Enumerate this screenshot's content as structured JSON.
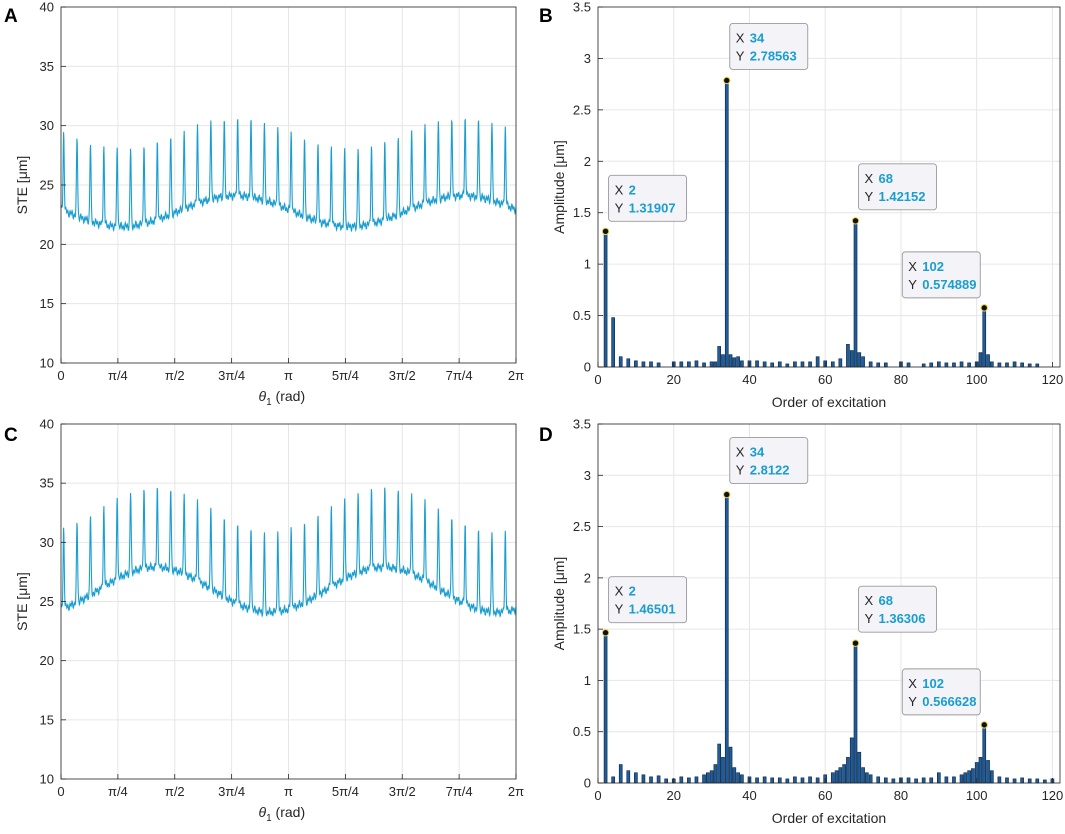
{
  "colors": {
    "line": "#1a9ed1",
    "bar_fill": "#1f5c99",
    "bar_edge": "#0b2540",
    "grid": "#e6e6e6",
    "axis": "#262626",
    "datatip_value": "#1a9ed1"
  },
  "chart_data": [
    {
      "panel": "A",
      "type": "line",
      "xlabel_symbol": "θ",
      "xlabel_sub": "1",
      "xlabel_rest": " (rad)",
      "ylabel": "STE [μm]",
      "xlim": [
        0,
        6.2832
      ],
      "ylim": [
        10,
        40
      ],
      "yticks": [
        10,
        15,
        20,
        25,
        30,
        35,
        40
      ],
      "xticks": [
        0,
        0.7854,
        1.5708,
        2.3562,
        3.1416,
        3.927,
        4.7124,
        5.4978,
        6.2832
      ],
      "xtick_labels": [
        "0",
        "π/4",
        "π/2",
        "3π/4",
        "π",
        "5π/4",
        "3π/2",
        "7π/4",
        "2π"
      ],
      "series": [
        {
          "name": "STE",
          "mean": 26,
          "mod_amp": 1.3,
          "mod_phase": 0.35,
          "teeth": 34,
          "base_offset": -3.2,
          "peak_offset": 3.4
        }
      ]
    },
    {
      "panel": "B",
      "type": "bar",
      "xlabel": "Order of excitation",
      "ylabel": "Amplitude [μm]",
      "xlim": [
        0,
        122
      ],
      "ylim": [
        0,
        3.5
      ],
      "yticks": [
        0,
        0.5,
        1,
        1.5,
        2,
        2.5,
        3,
        3.5
      ],
      "ytick_labels": [
        "0",
        "0.5",
        "1",
        "1.5",
        "2",
        "2.5",
        "3",
        "3.5"
      ],
      "xticks": [
        0,
        20,
        40,
        60,
        80,
        100,
        120
      ],
      "x": [
        2,
        4,
        6,
        8,
        10,
        12,
        14,
        16,
        20,
        22,
        24,
        26,
        28,
        30,
        31,
        32,
        33,
        34,
        35,
        36,
        37,
        38,
        40,
        42,
        44,
        46,
        48,
        50,
        52,
        54,
        56,
        58,
        60,
        62,
        64,
        66,
        67,
        68,
        69,
        70,
        72,
        74,
        76,
        80,
        82,
        86,
        88,
        90,
        92,
        94,
        96,
        98,
        100,
        101,
        102,
        103,
        104,
        106,
        108,
        110,
        112,
        114,
        116
      ],
      "values": [
        1.31907,
        0.48,
        0.1,
        0.08,
        0.06,
        0.05,
        0.05,
        0.04,
        0.05,
        0.05,
        0.05,
        0.06,
        0.04,
        0.05,
        0.05,
        0.2,
        0.12,
        2.78563,
        0.12,
        0.09,
        0.1,
        0.06,
        0.06,
        0.06,
        0.05,
        0.04,
        0.05,
        0.03,
        0.05,
        0.05,
        0.05,
        0.1,
        0.06,
        0.05,
        0.08,
        0.22,
        0.16,
        1.42152,
        0.14,
        0.1,
        0.05,
        0.04,
        0.04,
        0.05,
        0.04,
        0.03,
        0.04,
        0.05,
        0.04,
        0.04,
        0.05,
        0.04,
        0.05,
        0.14,
        0.574889,
        0.12,
        0.05,
        0.04,
        0.04,
        0.05,
        0.04,
        0.03,
        0.03
      ],
      "datatips": [
        {
          "x_label": "X",
          "x_value": "2",
          "y_label": "Y",
          "y_value": "1.31907",
          "x": 2,
          "y": 1.31907
        },
        {
          "x_label": "X",
          "x_value": "34",
          "y_label": "Y",
          "y_value": "2.78563",
          "x": 34,
          "y": 2.78563
        },
        {
          "x_label": "X",
          "x_value": "68",
          "y_label": "Y",
          "y_value": "1.42152",
          "x": 68,
          "y": 1.42152
        },
        {
          "x_label": "X",
          "x_value": "102",
          "y_label": "Y",
          "y_value": "0.574889",
          "x": 102,
          "y": 0.574889
        }
      ]
    },
    {
      "panel": "C",
      "type": "line",
      "xlabel_symbol": "θ",
      "xlabel_sub": "1",
      "xlabel_rest": " (rad)",
      "ylabel": "STE [μm]",
      "xlim": [
        0,
        6.2832
      ],
      "ylim": [
        10,
        40
      ],
      "yticks": [
        10,
        15,
        20,
        25,
        30,
        35,
        40
      ],
      "xticks": [
        0,
        0.7854,
        1.5708,
        2.3562,
        3.1416,
        3.927,
        4.7124,
        5.4978,
        6.2832
      ],
      "xtick_labels": [
        "0",
        "π/4",
        "π/2",
        "3π/4",
        "π",
        "5π/4",
        "3π/2",
        "7π/4",
        "2π"
      ],
      "series": [
        {
          "name": "STE",
          "mean": 29,
          "mod_amp": 1.9,
          "mod_phase": 0.0,
          "teeth": 34,
          "base_offset": -3.0,
          "peak_offset": 3.8
        }
      ]
    },
    {
      "panel": "D",
      "type": "bar",
      "xlabel": "Order of excitation",
      "ylabel": "Amplitude [μm]",
      "xlim": [
        0,
        122
      ],
      "ylim": [
        0,
        3.5
      ],
      "yticks": [
        0,
        0.5,
        1,
        1.5,
        2,
        2.5,
        3,
        3.5
      ],
      "ytick_labels": [
        "0",
        "0.5",
        "1",
        "1.5",
        "2",
        "2.5",
        "3",
        "3.5"
      ],
      "xticks": [
        0,
        20,
        40,
        60,
        80,
        100,
        120
      ],
      "x": [
        2,
        4,
        6,
        8,
        10,
        12,
        14,
        16,
        18,
        20,
        22,
        24,
        26,
        28,
        29,
        30,
        31,
        32,
        33,
        34,
        35,
        36,
        37,
        38,
        40,
        42,
        44,
        46,
        48,
        50,
        52,
        54,
        56,
        58,
        60,
        62,
        63,
        64,
        65,
        66,
        67,
        68,
        69,
        70,
        71,
        72,
        74,
        76,
        78,
        80,
        82,
        84,
        86,
        88,
        90,
        92,
        94,
        96,
        97,
        98,
        99,
        100,
        101,
        102,
        103,
        104,
        106,
        108,
        110,
        112,
        114,
        116,
        118,
        120
      ],
      "values": [
        1.46501,
        0.06,
        0.18,
        0.12,
        0.1,
        0.08,
        0.06,
        0.07,
        0.04,
        0.04,
        0.06,
        0.05,
        0.06,
        0.08,
        0.1,
        0.12,
        0.18,
        0.38,
        0.25,
        2.8122,
        0.35,
        0.15,
        0.1,
        0.08,
        0.06,
        0.05,
        0.06,
        0.05,
        0.05,
        0.04,
        0.06,
        0.05,
        0.06,
        0.05,
        0.08,
        0.1,
        0.12,
        0.15,
        0.18,
        0.25,
        0.44,
        1.36306,
        0.3,
        0.15,
        0.1,
        0.08,
        0.06,
        0.05,
        0.04,
        0.05,
        0.05,
        0.04,
        0.05,
        0.05,
        0.1,
        0.06,
        0.06,
        0.08,
        0.1,
        0.12,
        0.14,
        0.2,
        0.25,
        0.566628,
        0.22,
        0.12,
        0.06,
        0.05,
        0.04,
        0.05,
        0.04,
        0.04,
        0.03,
        0.04
      ],
      "datatips": [
        {
          "x_label": "X",
          "x_value": "2",
          "y_label": "Y",
          "y_value": "1.46501",
          "x": 2,
          "y": 1.46501
        },
        {
          "x_label": "X",
          "x_value": "34",
          "y_label": "Y",
          "y_value": "2.8122",
          "x": 34,
          "y": 2.8122
        },
        {
          "x_label": "X",
          "x_value": "68",
          "y_label": "Y",
          "y_value": "1.36306",
          "x": 68,
          "y": 1.36306
        },
        {
          "x_label": "X",
          "x_value": "102",
          "y_label": "Y",
          "y_value": "0.566628",
          "x": 102,
          "y": 0.566628
        }
      ]
    }
  ]
}
